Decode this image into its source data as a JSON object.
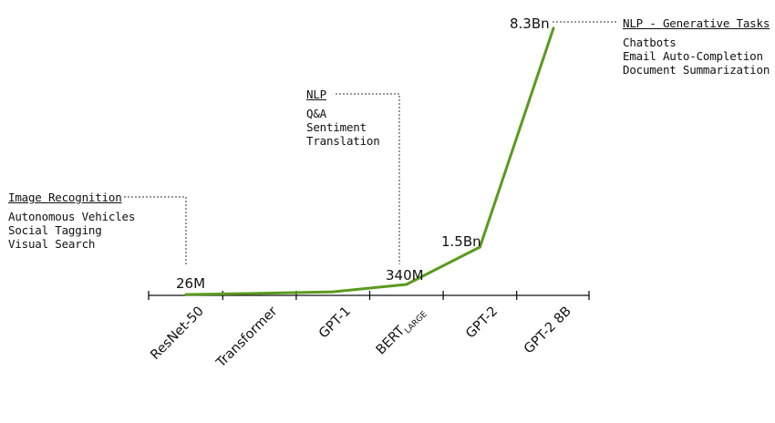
{
  "chart_data": {
    "type": "line",
    "categories": [
      "ResNet-50",
      "Transformer",
      "GPT-1",
      "BERT",
      "GPT-2",
      "GPT-2 8B"
    ],
    "category_subscripts": [
      "",
      "",
      "",
      "LARGE",
      "",
      ""
    ],
    "series": [
      {
        "values": [
          26,
          65,
          110,
          340,
          1500,
          8300
        ]
      }
    ],
    "y_unit": "millions of parameters",
    "ylim": [
      0,
      9000
    ],
    "grid": false,
    "line_color": "#5a9a1e",
    "value_labels": [
      {
        "category": "ResNet-50",
        "text": "26M"
      },
      {
        "category": "BERT",
        "text": "340M"
      },
      {
        "category": "GPT-2",
        "text": "1.5Bn"
      },
      {
        "category": "GPT-2 8B",
        "text": "8.3Bn"
      }
    ],
    "annotations": [
      {
        "category": "ResNet-50",
        "title": "Image Recognition",
        "items": [
          "Autonomous Vehicles",
          "Social Tagging",
          "Visual Search"
        ]
      },
      {
        "category": "BERT",
        "title": "NLP",
        "items": [
          "Q&A",
          "Sentiment",
          "Translation"
        ]
      },
      {
        "category": "GPT-2 8B",
        "title": "NLP - Generative Tasks",
        "items": [
          "Chatbots",
          "Email Auto-Completion",
          "Document Summarization"
        ]
      }
    ]
  }
}
